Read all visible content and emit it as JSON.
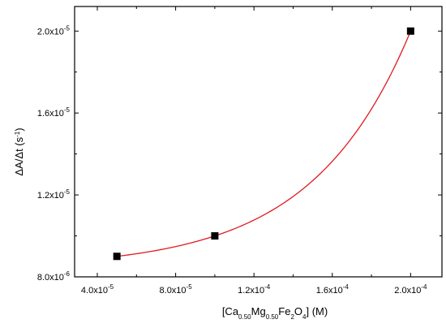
{
  "chart_data": {
    "type": "scatter",
    "x_ticks": [
      {
        "value": 4e-05,
        "label": "4.0x10",
        "exp": "-5"
      },
      {
        "value": 8e-05,
        "label": "8.0x10",
        "exp": "-5"
      },
      {
        "value": 0.00012,
        "label": "1.2x10",
        "exp": "-4"
      },
      {
        "value": 0.00016,
        "label": "1.6x10",
        "exp": "-4"
      },
      {
        "value": 0.0002,
        "label": "2.0x10",
        "exp": "-4"
      }
    ],
    "y_ticks": [
      {
        "value": 8e-06,
        "label": "8.0x10",
        "exp": "-6"
      },
      {
        "value": 1.2e-05,
        "label": "1.2x10",
        "exp": "-5"
      },
      {
        "value": 1.6e-05,
        "label": "1.6x10",
        "exp": "-5"
      },
      {
        "value": 2e-05,
        "label": "2.0x10",
        "exp": "-5"
      }
    ],
    "xlim": [
      2.84e-05,
      0.000216
    ],
    "ylim": [
      8e-06,
      2.12e-05
    ],
    "series": [
      {
        "points": [
          {
            "x": 5e-05,
            "y": 9e-06
          },
          {
            "x": 0.0001,
            "y": 1e-05
          },
          {
            "x": 0.0002,
            "y": 2e-05
          }
        ],
        "marker": "square",
        "marker_color": "#000000",
        "fit_color": "#e0191e"
      }
    ],
    "xlabel": "[Ca0.50Mg0.50Fe2O4] (M)",
    "ylabel": "ΔA/Δt (s-1)",
    "grid": false
  }
}
